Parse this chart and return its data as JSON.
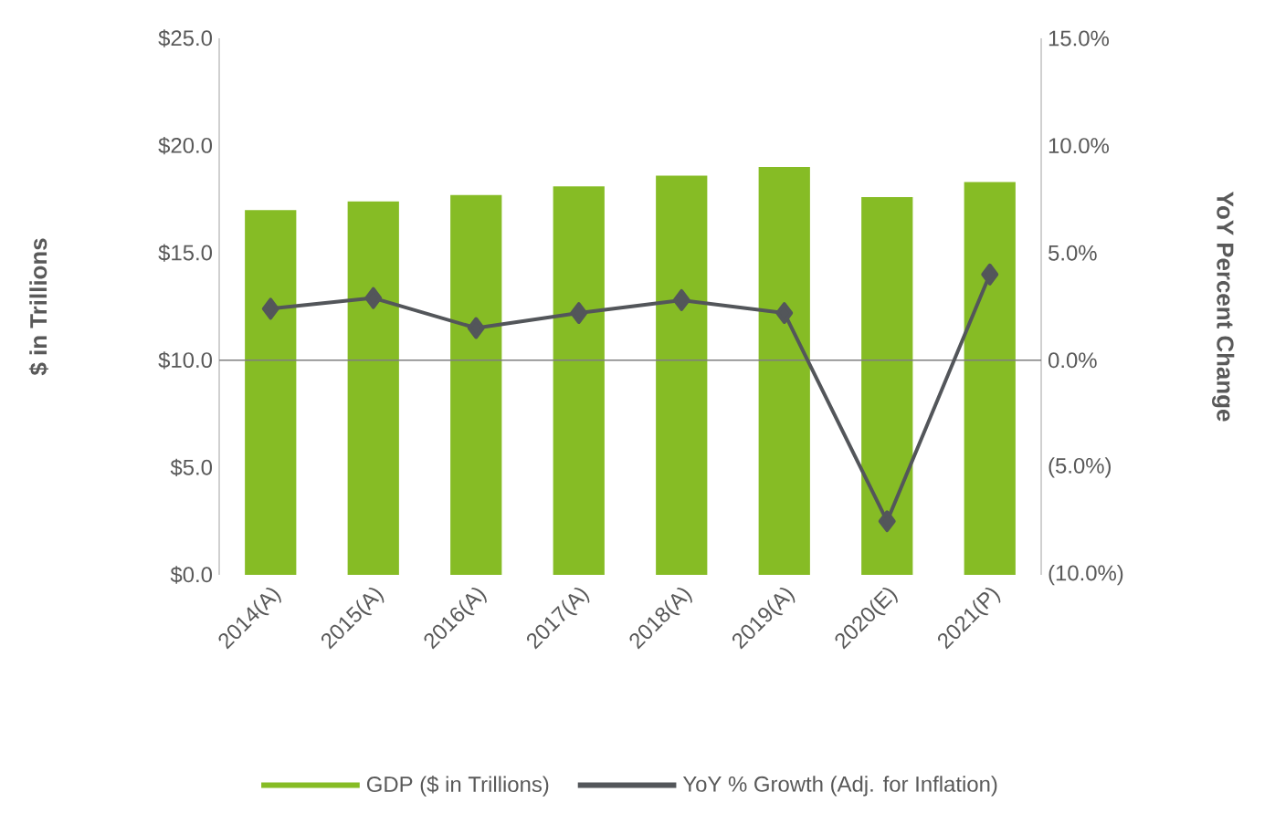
{
  "chart_data": {
    "type": "bar",
    "categories": [
      "2014(A)",
      "2015(A)",
      "2016(A)",
      "2017(A)",
      "2018(A)",
      "2019(A)",
      "2020(E)",
      "2021(P)"
    ],
    "series": [
      {
        "name": "GDP ($ in Trillions)",
        "color": "#86bc25",
        "values": [
          17.0,
          17.4,
          17.7,
          18.1,
          18.6,
          19.0,
          17.6,
          18.3
        ]
      },
      {
        "name": "YoY % Growth (Adj. for Inflation)",
        "type": "line",
        "axis": "y2",
        "color": "#53565a",
        "marker": "diamond",
        "line_style": "solid",
        "values": [
          2.4,
          2.9,
          1.5,
          2.2,
          2.8,
          2.2,
          -7.5,
          4.0
        ]
      }
    ],
    "ylabel": "$ in Trillions",
    "y2label": "YoY Percent Change",
    "ylim": [
      0,
      25
    ],
    "yticks": [
      {
        "value": 0,
        "label": "$0.0"
      },
      {
        "value": 5,
        "label": "$5.0"
      },
      {
        "value": 10,
        "label": "$10.0"
      },
      {
        "value": 15,
        "label": "$15.0"
      },
      {
        "value": 20,
        "label": "$20.0"
      },
      {
        "value": 25,
        "label": "$25.0"
      }
    ],
    "y2lim": [
      -10,
      15
    ],
    "y2ticks": [
      {
        "value": -10,
        "label": "(10.0%)"
      },
      {
        "value": -5,
        "label": "(5.0%)"
      },
      {
        "value": 0,
        "label": "0.0%"
      },
      {
        "value": 5,
        "label": "5.0%"
      },
      {
        "value": 10,
        "label": "10.0%"
      },
      {
        "value": 15,
        "label": "15.0%"
      }
    ],
    "ref_lines": [
      {
        "axis": "y2",
        "value": 0,
        "color": "#7f7f7f"
      }
    ],
    "legend": "bottom"
  }
}
